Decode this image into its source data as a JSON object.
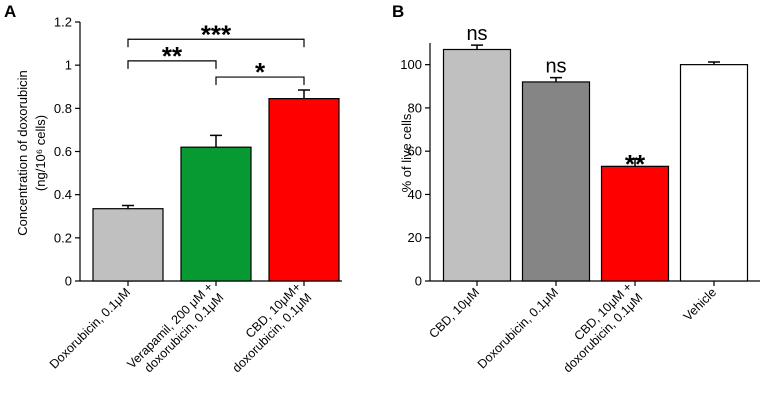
{
  "chart_data": [
    {
      "panel": "A",
      "type": "bar",
      "ylabel_line1": "Concentration of doxorubicin",
      "ylabel_line2": "(ng/10⁶ cells)",
      "ylim": [
        0,
        1.2
      ],
      "yticks": [
        "0",
        "0.2",
        "0.4",
        "0.6",
        "0.8",
        "1",
        "1.2"
      ],
      "categories": [
        {
          "lines": [
            "Doxorubicin, 0.1μM"
          ]
        },
        {
          "lines": [
            "Verapamil, 200 μM +",
            "doxorubicin, 0.1μM"
          ]
        },
        {
          "lines": [
            "CBD, 10μM+",
            "doxorubicin, 0.1μM"
          ]
        }
      ],
      "values": [
        0.335,
        0.62,
        0.845
      ],
      "errors": [
        0.015,
        0.055,
        0.04
      ],
      "colors": [
        "#c0c0c0",
        "#079a33",
        "#fe0000"
      ],
      "significance": [
        {
          "from": 0,
          "to": 1,
          "level": 1.02,
          "label": "**"
        },
        {
          "from": 1,
          "to": 2,
          "level": 0.945,
          "label": "*"
        },
        {
          "from": 0,
          "to": 2,
          "level": 1.12,
          "label": "***"
        }
      ]
    },
    {
      "panel": "B",
      "type": "bar",
      "ylabel": "% of live cells",
      "ylim": [
        0,
        110
      ],
      "yticks": [
        "0",
        "20",
        "40",
        "60",
        "80",
        "100"
      ],
      "categories": [
        {
          "lines": [
            "CBD,  10μM"
          ]
        },
        {
          "lines": [
            "Doxorubicin, 0.1μM"
          ]
        },
        {
          "lines": [
            "CBD, 10μM +",
            "doxorubicin, 0.1μM"
          ]
        },
        {
          "lines": [
            "Vehicle"
          ]
        }
      ],
      "values": [
        107,
        92,
        53,
        100
      ],
      "errors": [
        2,
        2,
        3.5,
        1.2
      ],
      "colors": [
        "#c0c0c0",
        "#858585",
        "#fe0000",
        "#ffffff"
      ],
      "bar_labels": [
        "ns",
        "ns",
        "**",
        ""
      ]
    }
  ]
}
